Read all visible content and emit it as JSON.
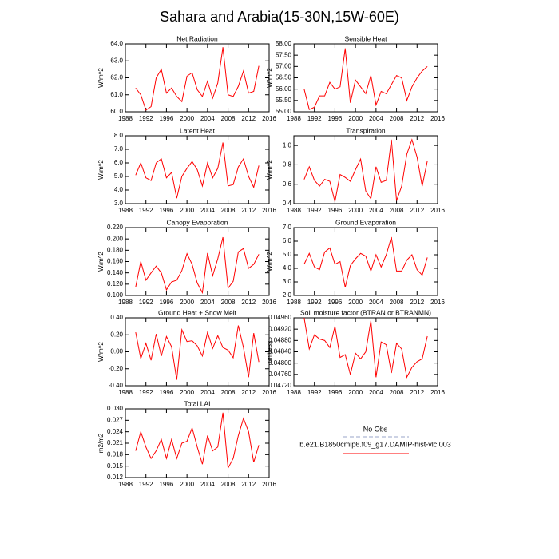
{
  "title": "Sahara and Arabia(15-30N,15W-60E)",
  "legend": [
    {
      "name": "No Obs",
      "color": "#9aa6c8"
    },
    {
      "name": "b.e21.B1850cmip6.f09_g17.DAMIP-hist-vlc.003",
      "color": "#ff0000"
    }
  ],
  "chart_data": [
    {
      "type": "line",
      "title": "Net Radiation",
      "ylabel": "W/m^2",
      "color": "#ff0000",
      "x": [
        1990,
        1991,
        1992,
        1993,
        1994,
        1995,
        1996,
        1997,
        1998,
        1999,
        2000,
        2001,
        2002,
        2003,
        2004,
        2005,
        2006,
        2007,
        2008,
        2009,
        2010,
        2011,
        2012,
        2013,
        2014
      ],
      "values": [
        61.4,
        61.0,
        60.1,
        60.3,
        62.0,
        62.5,
        61.1,
        61.4,
        60.9,
        60.6,
        62.1,
        62.3,
        61.3,
        60.9,
        61.8,
        60.8,
        61.7,
        63.8,
        61.0,
        60.9,
        61.5,
        62.4,
        61.1,
        61.2,
        62.7
      ],
      "xlim": [
        1988,
        2016
      ],
      "xticks": [
        1988,
        1992,
        1996,
        2000,
        2004,
        2008,
        2012,
        2016
      ],
      "ylim": [
        60,
        64
      ],
      "yticks": [
        {
          "value": 60,
          "label": "60.0"
        },
        {
          "value": 61,
          "label": "61.0"
        },
        {
          "value": 62,
          "label": "62.0"
        },
        {
          "value": 63,
          "label": "63.0"
        },
        {
          "value": 64,
          "label": "64.0"
        }
      ]
    },
    {
      "type": "line",
      "title": "Sensible Heat",
      "ylabel": "W/m^2",
      "color": "#ff0000",
      "x": [
        1990,
        1991,
        1992,
        1993,
        1994,
        1995,
        1996,
        1997,
        1998,
        1999,
        2000,
        2001,
        2002,
        2003,
        2004,
        2005,
        2006,
        2007,
        2008,
        2009,
        2010,
        2011,
        2012,
        2013,
        2014
      ],
      "values": [
        56.0,
        55.1,
        55.2,
        55.7,
        55.7,
        56.3,
        56.0,
        56.1,
        57.8,
        55.4,
        56.4,
        56.1,
        55.8,
        56.6,
        55.3,
        55.9,
        55.8,
        56.2,
        56.6,
        56.5,
        55.5,
        56.1,
        56.5,
        56.8,
        57.0
      ],
      "xlim": [
        1988,
        2016
      ],
      "xticks": [
        1988,
        1992,
        1996,
        2000,
        2004,
        2008,
        2012,
        2016
      ],
      "ylim": [
        55,
        58
      ],
      "yticks": [
        {
          "value": 55,
          "label": "55.00"
        },
        {
          "value": 55.5,
          "label": "55.50"
        },
        {
          "value": 56,
          "label": "56.00"
        },
        {
          "value": 56.5,
          "label": "56.50"
        },
        {
          "value": 57,
          "label": "57.00"
        },
        {
          "value": 57.5,
          "label": "57.50"
        },
        {
          "value": 58,
          "label": "58.00"
        }
      ]
    },
    {
      "type": "line",
      "title": "Latent Heat",
      "ylabel": "W/m^2",
      "color": "#ff0000",
      "x": [
        1990,
        1991,
        1992,
        1993,
        1994,
        1995,
        1996,
        1997,
        1998,
        1999,
        2000,
        2001,
        2002,
        2003,
        2004,
        2005,
        2006,
        2007,
        2008,
        2009,
        2010,
        2011,
        2012,
        2013,
        2014
      ],
      "values": [
        5.1,
        6.0,
        4.9,
        4.7,
        6.0,
        6.3,
        4.9,
        5.3,
        3.4,
        5.0,
        5.6,
        6.1,
        5.5,
        4.3,
        6.0,
        4.9,
        5.6,
        7.5,
        4.3,
        4.4,
        5.7,
        6.3,
        5.0,
        4.2,
        5.8
      ],
      "xlim": [
        1988,
        2016
      ],
      "xticks": [
        1988,
        1992,
        1996,
        2000,
        2004,
        2008,
        2012,
        2016
      ],
      "ylim": [
        3,
        8
      ],
      "yticks": [
        {
          "value": 3,
          "label": "3.0"
        },
        {
          "value": 4,
          "label": "4.0"
        },
        {
          "value": 5,
          "label": "5.0"
        },
        {
          "value": 6,
          "label": "6.0"
        },
        {
          "value": 7,
          "label": "7.0"
        },
        {
          "value": 8,
          "label": "8.0"
        }
      ]
    },
    {
      "type": "line",
      "title": "Transpiration",
      "ylabel": "W/m^2",
      "color": "#ff0000",
      "x": [
        1990,
        1991,
        1992,
        1993,
        1994,
        1995,
        1996,
        1997,
        1998,
        1999,
        2000,
        2001,
        2002,
        2003,
        2004,
        2005,
        2006,
        2007,
        2008,
        2009,
        2010,
        2011,
        2012,
        2013,
        2014
      ],
      "values": [
        0.65,
        0.78,
        0.64,
        0.58,
        0.65,
        0.63,
        0.42,
        0.7,
        0.67,
        0.63,
        0.75,
        0.86,
        0.53,
        0.45,
        0.78,
        0.62,
        0.64,
        1.06,
        0.43,
        0.58,
        0.91,
        1.06,
        0.88,
        0.58,
        0.84
      ],
      "xlim": [
        1988,
        2016
      ],
      "xticks": [
        1988,
        1992,
        1996,
        2000,
        2004,
        2008,
        2012,
        2016
      ],
      "ylim": [
        0.4,
        1.1
      ],
      "yticks": [
        0.4,
        0.6,
        0.8,
        {
          "value": 1,
          "label": "1.0"
        }
      ]
    },
    {
      "type": "line",
      "title": "Canopy Evaporation",
      "ylabel": "W/m^2",
      "color": "#ff0000",
      "x": [
        1990,
        1991,
        1992,
        1993,
        1994,
        1995,
        1996,
        1997,
        1998,
        1999,
        2000,
        2001,
        2002,
        2003,
        2004,
        2005,
        2006,
        2007,
        2008,
        2009,
        2010,
        2011,
        2012,
        2013,
        2014
      ],
      "values": [
        0.115,
        0.16,
        0.127,
        0.14,
        0.152,
        0.14,
        0.11,
        0.124,
        0.127,
        0.144,
        0.174,
        0.155,
        0.122,
        0.105,
        0.175,
        0.135,
        0.165,
        0.203,
        0.113,
        0.125,
        0.177,
        0.183,
        0.148,
        0.155,
        0.173
      ],
      "xlim": [
        1988,
        2016
      ],
      "xticks": [
        1988,
        1992,
        1996,
        2000,
        2004,
        2008,
        2012,
        2016
      ],
      "ylim": [
        0.1,
        0.22
      ],
      "yticks": [
        {
          "value": 0.1,
          "label": "0.100"
        },
        {
          "value": 0.12,
          "label": "0.120"
        },
        {
          "value": 0.14,
          "label": "0.140"
        },
        {
          "value": 0.16,
          "label": "0.160"
        },
        {
          "value": 0.18,
          "label": "0.180"
        },
        {
          "value": 0.2,
          "label": "0.200"
        },
        {
          "value": 0.22,
          "label": "0.220"
        }
      ]
    },
    {
      "type": "line",
      "title": "Ground Evaporation",
      "ylabel": "W/m^2",
      "color": "#ff0000",
      "x": [
        1990,
        1991,
        1992,
        1993,
        1994,
        1995,
        1996,
        1997,
        1998,
        1999,
        2000,
        2001,
        2002,
        2003,
        2004,
        2005,
        2006,
        2007,
        2008,
        2009,
        2010,
        2011,
        2012,
        2013,
        2014
      ],
      "values": [
        4.3,
        5.1,
        4.1,
        3.9,
        5.2,
        5.5,
        4.3,
        4.5,
        2.6,
        4.2,
        4.7,
        5.1,
        4.9,
        3.8,
        5.0,
        4.1,
        5.0,
        6.3,
        3.8,
        3.8,
        4.6,
        5.0,
        3.9,
        3.5,
        4.8
      ],
      "xlim": [
        1988,
        2016
      ],
      "xticks": [
        1988,
        1992,
        1996,
        2000,
        2004,
        2008,
        2012,
        2016
      ],
      "ylim": [
        2,
        7
      ],
      "yticks": [
        {
          "value": 2,
          "label": "2.0"
        },
        {
          "value": 3,
          "label": "3.0"
        },
        {
          "value": 4,
          "label": "4.0"
        },
        {
          "value": 5,
          "label": "5.0"
        },
        {
          "value": 6,
          "label": "6.0"
        },
        {
          "value": 7,
          "label": "7.0"
        }
      ]
    },
    {
      "type": "line",
      "title": "Ground Heat + Snow Melt",
      "ylabel": "W/m^2",
      "color": "#ff0000",
      "x": [
        1990,
        1991,
        1992,
        1993,
        1994,
        1995,
        1996,
        1997,
        1998,
        1999,
        2000,
        2001,
        2002,
        2003,
        2004,
        2005,
        2006,
        2007,
        2008,
        2009,
        2010,
        2011,
        2012,
        2013,
        2014
      ],
      "values": [
        0.23,
        -0.08,
        0.1,
        -0.1,
        0.21,
        -0.05,
        0.18,
        0.06,
        -0.33,
        0.26,
        0.12,
        0.13,
        0.07,
        -0.05,
        0.23,
        0.04,
        0.19,
        0.05,
        0.02,
        -0.07,
        0.31,
        0.05,
        -0.3,
        0.22,
        -0.12
      ],
      "xlim": [
        1988,
        2016
      ],
      "xticks": [
        1988,
        1992,
        1996,
        2000,
        2004,
        2008,
        2012,
        2016
      ],
      "ylim": [
        -0.4,
        0.4
      ],
      "yticks": [
        {
          "value": -0.4,
          "label": "-0.40"
        },
        {
          "value": -0.2,
          "label": "-0.20"
        },
        {
          "value": 0,
          "label": "0.00"
        },
        {
          "value": 0.2,
          "label": "0.20"
        },
        {
          "value": 0.4,
          "label": "0.40"
        }
      ]
    },
    {
      "type": "line",
      "title": "Soil moisture factor (BTRAN or BTRANMN)",
      "ylabel": "unitless",
      "color": "#ff0000",
      "x": [
        1990,
        1991,
        1992,
        1993,
        1994,
        1995,
        1996,
        1997,
        1998,
        1999,
        2000,
        2001,
        2002,
        2003,
        2004,
        2005,
        2006,
        2007,
        2008,
        2009,
        2010,
        2011,
        2012,
        2013,
        2014
      ],
      "values": [
        0.0496,
        0.0485,
        0.049,
        0.04885,
        0.0488,
        0.04855,
        0.0493,
        0.0482,
        0.0483,
        0.0476,
        0.04835,
        0.04815,
        0.0484,
        0.0495,
        0.0475,
        0.04875,
        0.04865,
        0.04765,
        0.0487,
        0.0485,
        0.0475,
        0.04785,
        0.04805,
        0.04815,
        0.04895
      ],
      "xlim": [
        1988,
        2016
      ],
      "xticks": [
        1988,
        1992,
        1996,
        2000,
        2004,
        2008,
        2012,
        2016
      ],
      "ylim": [
        0.0472,
        0.0496
      ],
      "yticks": [
        {
          "value": 0.0472,
          "label": "0.04720"
        },
        {
          "value": 0.0476,
          "label": "0.04760"
        },
        {
          "value": 0.048,
          "label": "0.04800"
        },
        {
          "value": 0.0484,
          "label": "0.04840"
        },
        {
          "value": 0.0488,
          "label": "0.04880"
        },
        {
          "value": 0.0492,
          "label": "0.04920"
        },
        {
          "value": 0.0496,
          "label": "0.04960"
        }
      ]
    },
    {
      "type": "line",
      "title": "Total LAI",
      "ylabel": "m2/m2",
      "color": "#ff0000",
      "x": [
        1990,
        1991,
        1992,
        1993,
        1994,
        1995,
        1996,
        1997,
        1998,
        1999,
        2000,
        2001,
        2002,
        2003,
        2004,
        2005,
        2006,
        2007,
        2008,
        2009,
        2010,
        2011,
        2012,
        2013,
        2014
      ],
      "values": [
        0.019,
        0.024,
        0.02,
        0.017,
        0.019,
        0.022,
        0.017,
        0.022,
        0.017,
        0.021,
        0.0215,
        0.025,
        0.02,
        0.0155,
        0.023,
        0.019,
        0.02,
        0.029,
        0.0145,
        0.017,
        0.023,
        0.0275,
        0.024,
        0.016,
        0.0205
      ],
      "xlim": [
        1988,
        2016
      ],
      "xticks": [
        1988,
        1992,
        1996,
        2000,
        2004,
        2008,
        2012,
        2016
      ],
      "ylim": [
        0.012,
        0.03
      ],
      "yticks": [
        0.012,
        0.015,
        0.018,
        0.021,
        0.024,
        0.027,
        {
          "value": 0.03,
          "label": "0.030"
        }
      ]
    }
  ]
}
